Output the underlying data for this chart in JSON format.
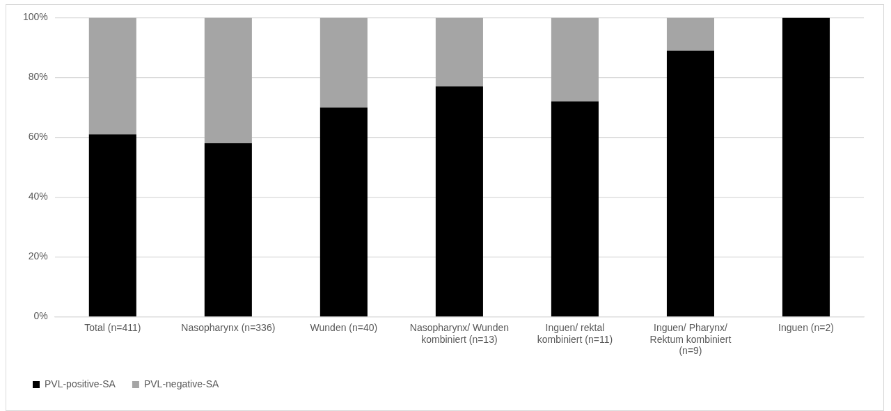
{
  "chart_data": {
    "type": "bar",
    "stacked": true,
    "categories": [
      "Total (n=411)",
      "Nasopharynx (n=336)",
      "Wunden (n=40)",
      "Nasopharynx/ Wunden kombiniert (n=13)",
      "Inguen/ rektal kombiniert (n=11)",
      "Inguen/ Pharynx/ Rektum kombiniert (n=9)",
      "Inguen (n=2)"
    ],
    "series": [
      {
        "name": "PVL-positive-SA",
        "color": "#000000",
        "values": [
          61,
          58,
          70,
          77,
          72,
          89,
          100
        ]
      },
      {
        "name": "PVL-negative-SA",
        "color": "#a5a5a5",
        "values": [
          39,
          42,
          30,
          23,
          28,
          11,
          0
        ]
      }
    ],
    "ylim": [
      0,
      100
    ],
    "yticks": [
      {
        "value": 0,
        "label": "0%"
      },
      {
        "value": 20,
        "label": "20%"
      },
      {
        "value": 40,
        "label": "40%"
      },
      {
        "value": 60,
        "label": "60%"
      },
      {
        "value": 80,
        "label": "80%"
      },
      {
        "value": 100,
        "label": "100%"
      }
    ],
    "grid": "y",
    "legend": "bottom left"
  }
}
